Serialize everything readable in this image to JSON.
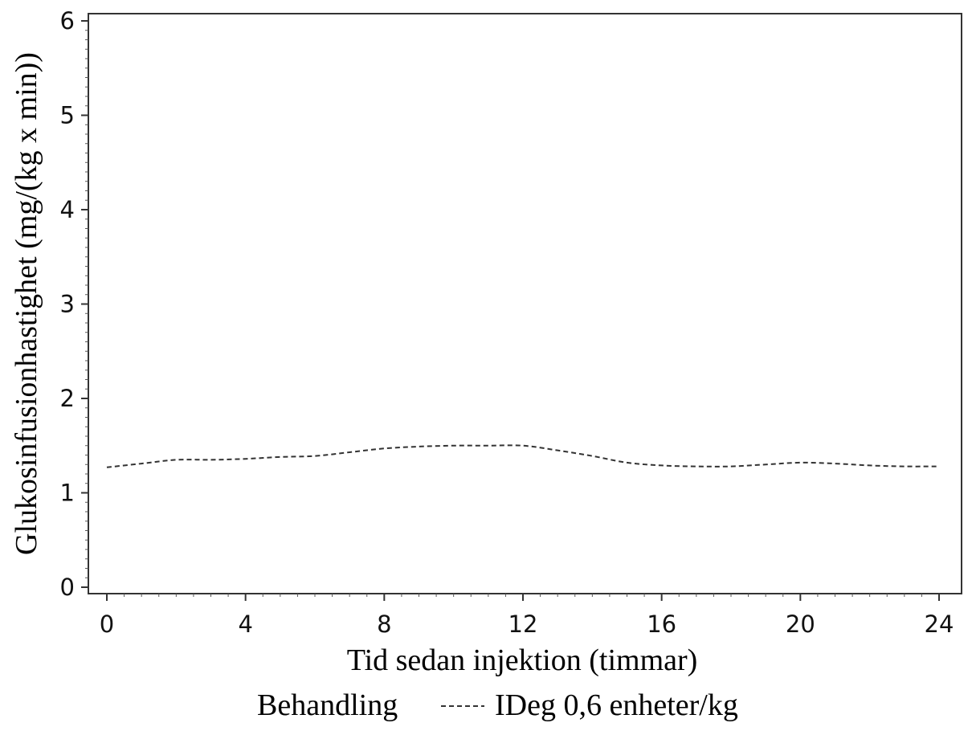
{
  "chart_data": {
    "type": "line",
    "xlabel": "Tid sedan injektion (timmar)",
    "ylabel": "Glukosinfusionhastighet (mg/(kg x min))",
    "xlim": [
      0,
      24
    ],
    "ylim": [
      0,
      6
    ],
    "x_ticks": [
      0,
      4,
      8,
      12,
      16,
      20,
      24
    ],
    "y_ticks": [
      0,
      1,
      2,
      3,
      4,
      5,
      6
    ],
    "x_tick_labels": [
      "0",
      "4",
      "8",
      "12",
      "16",
      "20",
      "24"
    ],
    "y_tick_labels": [
      "0",
      "1",
      "2",
      "3",
      "4",
      "5",
      "6"
    ],
    "grid": false,
    "legend": {
      "title": "Behandling",
      "placement": "bottom",
      "entries": [
        {
          "label": "IDeg 0,6 enheter/kg",
          "line_style": "dashed"
        }
      ]
    },
    "series": [
      {
        "name": "IDeg 0,6 enheter/kg",
        "line_style": "dashed",
        "color": "#333333",
        "x": [
          0,
          1,
          2,
          3,
          4,
          5,
          6,
          7,
          8,
          9,
          10,
          11,
          12,
          13,
          14,
          15,
          16,
          17,
          18,
          19,
          20,
          21,
          22,
          23,
          24
        ],
        "y": [
          1.27,
          1.31,
          1.35,
          1.35,
          1.36,
          1.38,
          1.39,
          1.43,
          1.47,
          1.49,
          1.5,
          1.5,
          1.5,
          1.45,
          1.39,
          1.32,
          1.29,
          1.28,
          1.28,
          1.3,
          1.32,
          1.31,
          1.29,
          1.28,
          1.28
        ]
      }
    ]
  }
}
